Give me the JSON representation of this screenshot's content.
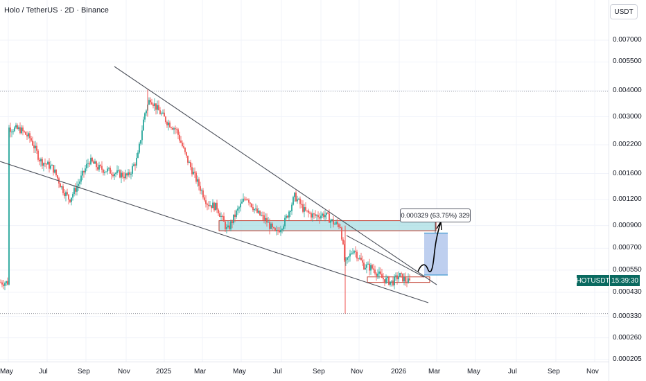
{
  "title": "Holo / TetherUS · 2D · Binance",
  "currency_button": "USDT",
  "symbol": "HOTUSDT",
  "countdown": "15:39:30",
  "measure_label": "0.000329 (63.75%) 329",
  "colors": {
    "up": "#26a69a",
    "down": "#ef5350",
    "zone_fill": "#a8dde3",
    "zone_border": "#c0392b",
    "target_box": "#b3c7ec",
    "trendline": "#4a4e58",
    "badge": "#0a6a60"
  },
  "chart_data": {
    "type": "candlestick",
    "symbol": "HOTUSDT",
    "interval": "2D",
    "exchange": "Binance",
    "y_scale": "log",
    "ylim": [
      0.0002,
      0.0075
    ],
    "y_ticks": [
      "0.007000",
      "0.005500",
      "0.004000",
      "0.003000",
      "0.002200",
      "0.001600",
      "0.001200",
      "0.000900",
      "0.000700",
      "0.000550",
      "0.000430",
      "0.000330",
      "0.000260",
      "0.000205"
    ],
    "x_ticks": [
      "May",
      "Jul",
      "Sep",
      "Nov",
      "2025",
      "Mar",
      "May",
      "Jul",
      "Sep",
      "Nov",
      "2026",
      "Mar",
      "May",
      "Jul",
      "Sep",
      "Nov"
    ],
    "last_price": 0.00048,
    "series_path": [
      [
        "2024-05-01",
        0.00265
      ],
      [
        "2024-05-20",
        0.0026
      ],
      [
        "2024-06-05",
        0.00235
      ],
      [
        "2024-06-20",
        0.00185
      ],
      [
        "2024-07-10",
        0.0017
      ],
      [
        "2024-07-25",
        0.00135
      ],
      [
        "2024-08-05",
        0.0012
      ],
      [
        "2024-08-20",
        0.00145
      ],
      [
        "2024-09-05",
        0.00185
      ],
      [
        "2024-09-20",
        0.0017
      ],
      [
        "2024-10-05",
        0.00165
      ],
      [
        "2024-10-20",
        0.0016
      ],
      [
        "2024-11-05",
        0.00155
      ],
      [
        "2024-11-20",
        0.0019
      ],
      [
        "2024-12-01",
        0.0031
      ],
      [
        "2024-12-10",
        0.0037
      ],
      [
        "2024-12-20",
        0.0033
      ],
      [
        "2025-01-05",
        0.00285
      ],
      [
        "2025-01-20",
        0.0026
      ],
      [
        "2025-02-05",
        0.0019
      ],
      [
        "2025-02-20",
        0.0015
      ],
      [
        "2025-03-10",
        0.00115
      ],
      [
        "2025-03-25",
        0.0011
      ],
      [
        "2025-04-10",
        0.00085
      ],
      [
        "2025-04-25",
        0.00105
      ],
      [
        "2025-05-10",
        0.00125
      ],
      [
        "2025-05-25",
        0.00105
      ],
      [
        "2025-06-10",
        0.00095
      ],
      [
        "2025-06-25",
        0.00082
      ],
      [
        "2025-07-10",
        0.00095
      ],
      [
        "2025-07-25",
        0.00125
      ],
      [
        "2025-08-10",
        0.00105
      ],
      [
        "2025-08-25",
        0.001
      ],
      [
        "2025-09-10",
        0.00102
      ],
      [
        "2025-09-25",
        0.00092
      ],
      [
        "2025-10-05",
        0.0009
      ],
      [
        "2025-10-12",
        0.00058
      ],
      [
        "2025-10-25",
        0.0007
      ],
      [
        "2025-11-10",
        0.00058
      ],
      [
        "2025-11-25",
        0.00056
      ],
      [
        "2025-12-10",
        0.0005
      ],
      [
        "2025-12-25",
        0.00048
      ],
      [
        "2026-01-05",
        0.00052
      ],
      [
        "2026-01-15",
        0.00049
      ],
      [
        "2026-01-22",
        0.00048
      ]
    ],
    "annotations": {
      "resistance_zone": [
        0.00085,
        0.00095
      ],
      "support_zone": [
        0.00048,
        0.00051
      ],
      "dotted_levels": [
        0.00398,
        0.00034
      ],
      "projection_target": 0.000829,
      "measure": {
        "value": 0.000329,
        "percent": 63.75,
        "bars": 329
      }
    }
  }
}
